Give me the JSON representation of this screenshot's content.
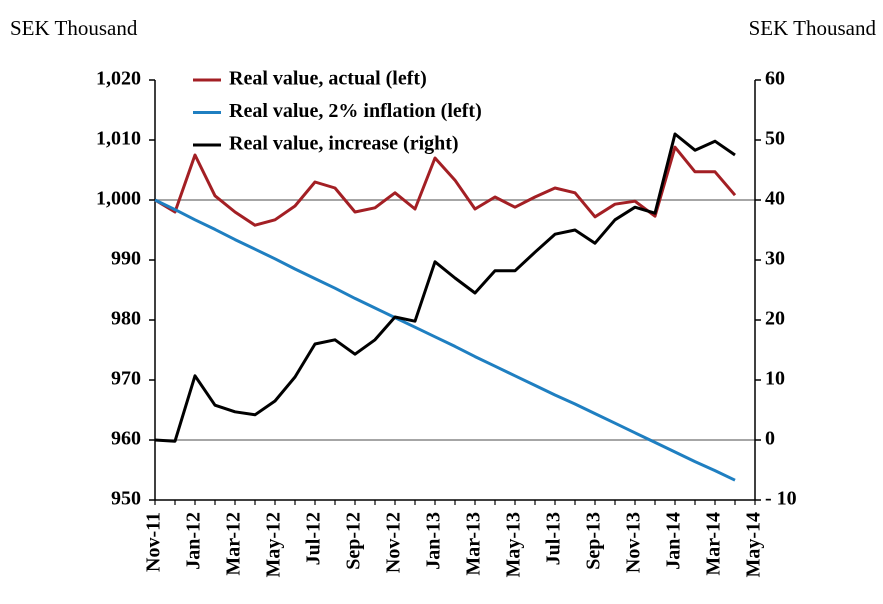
{
  "chart_data": {
    "type": "line",
    "left_unit": "SEK Thousand",
    "right_unit": "SEK Thousand",
    "categories": [
      "Nov-11",
      null,
      "Jan-12",
      null,
      "Mar-12",
      null,
      "May-12",
      null,
      "Jul-12",
      null,
      "Sep-12",
      null,
      "Nov-12",
      null,
      "Jan-13",
      null,
      "Mar-13",
      null,
      "May-13",
      null,
      "Jul-13",
      null,
      "Sep-13",
      null,
      "Nov-13",
      null,
      "Jan-14",
      null,
      "Mar-14",
      null,
      "May-14"
    ],
    "series": [
      {
        "name": "Real value, actual (left)",
        "color": "#a31f24",
        "axis": "y",
        "values": [
          1000,
          998,
          1007.5,
          1000.7,
          998,
          995.8,
          996.7,
          999,
          1003,
          1002,
          998,
          998.7,
          1001.2,
          998.5,
          1007,
          1003.3,
          998.5,
          1000.5,
          998.8,
          1000.5,
          1002,
          1001.2,
          997.2,
          999.3,
          999.8,
          997.3,
          1008.8,
          1004.7,
          1004.7,
          1000.8,
          null
        ]
      },
      {
        "name": "Real value, 2% inflation (left)",
        "color": "#1f7fc1",
        "axis": "y",
        "values": [
          1000,
          998.4,
          996.7,
          995.1,
          993.4,
          991.8,
          990.2,
          988.5,
          986.9,
          985.3,
          983.6,
          982,
          980.4,
          978.8,
          977.2,
          975.6,
          973.9,
          972.3,
          970.7,
          969.1,
          967.5,
          966,
          964.4,
          962.8,
          961.2,
          959.6,
          958,
          956.4,
          954.9,
          953.3,
          null
        ]
      },
      {
        "name": "Real value, increase (right)",
        "color": "#000000",
        "axis": "y2",
        "values": [
          0,
          -0.2,
          10.7,
          5.8,
          4.7,
          4.2,
          6.5,
          10.5,
          16,
          16.7,
          14.3,
          16.7,
          20.5,
          19.8,
          29.7,
          27,
          24.5,
          28.2,
          28.2,
          31.3,
          34.3,
          35,
          32.8,
          36.7,
          38.8,
          37.8,
          51,
          48.3,
          49.8,
          47.5,
          null
        ]
      }
    ],
    "ylim": [
      950,
      1020
    ],
    "yticks": [
      950,
      960,
      970,
      980,
      990,
      {
        "value": 1000,
        "label": "1,000"
      },
      {
        "value": 1010,
        "label": "1,010"
      },
      {
        "value": 1020,
        "label": "1,020"
      }
    ],
    "y2lim": [
      -10,
      60
    ],
    "y2ticks": [
      {
        "value": -10,
        "label": "- 10"
      },
      0,
      10,
      20,
      30,
      40,
      50,
      60
    ]
  }
}
